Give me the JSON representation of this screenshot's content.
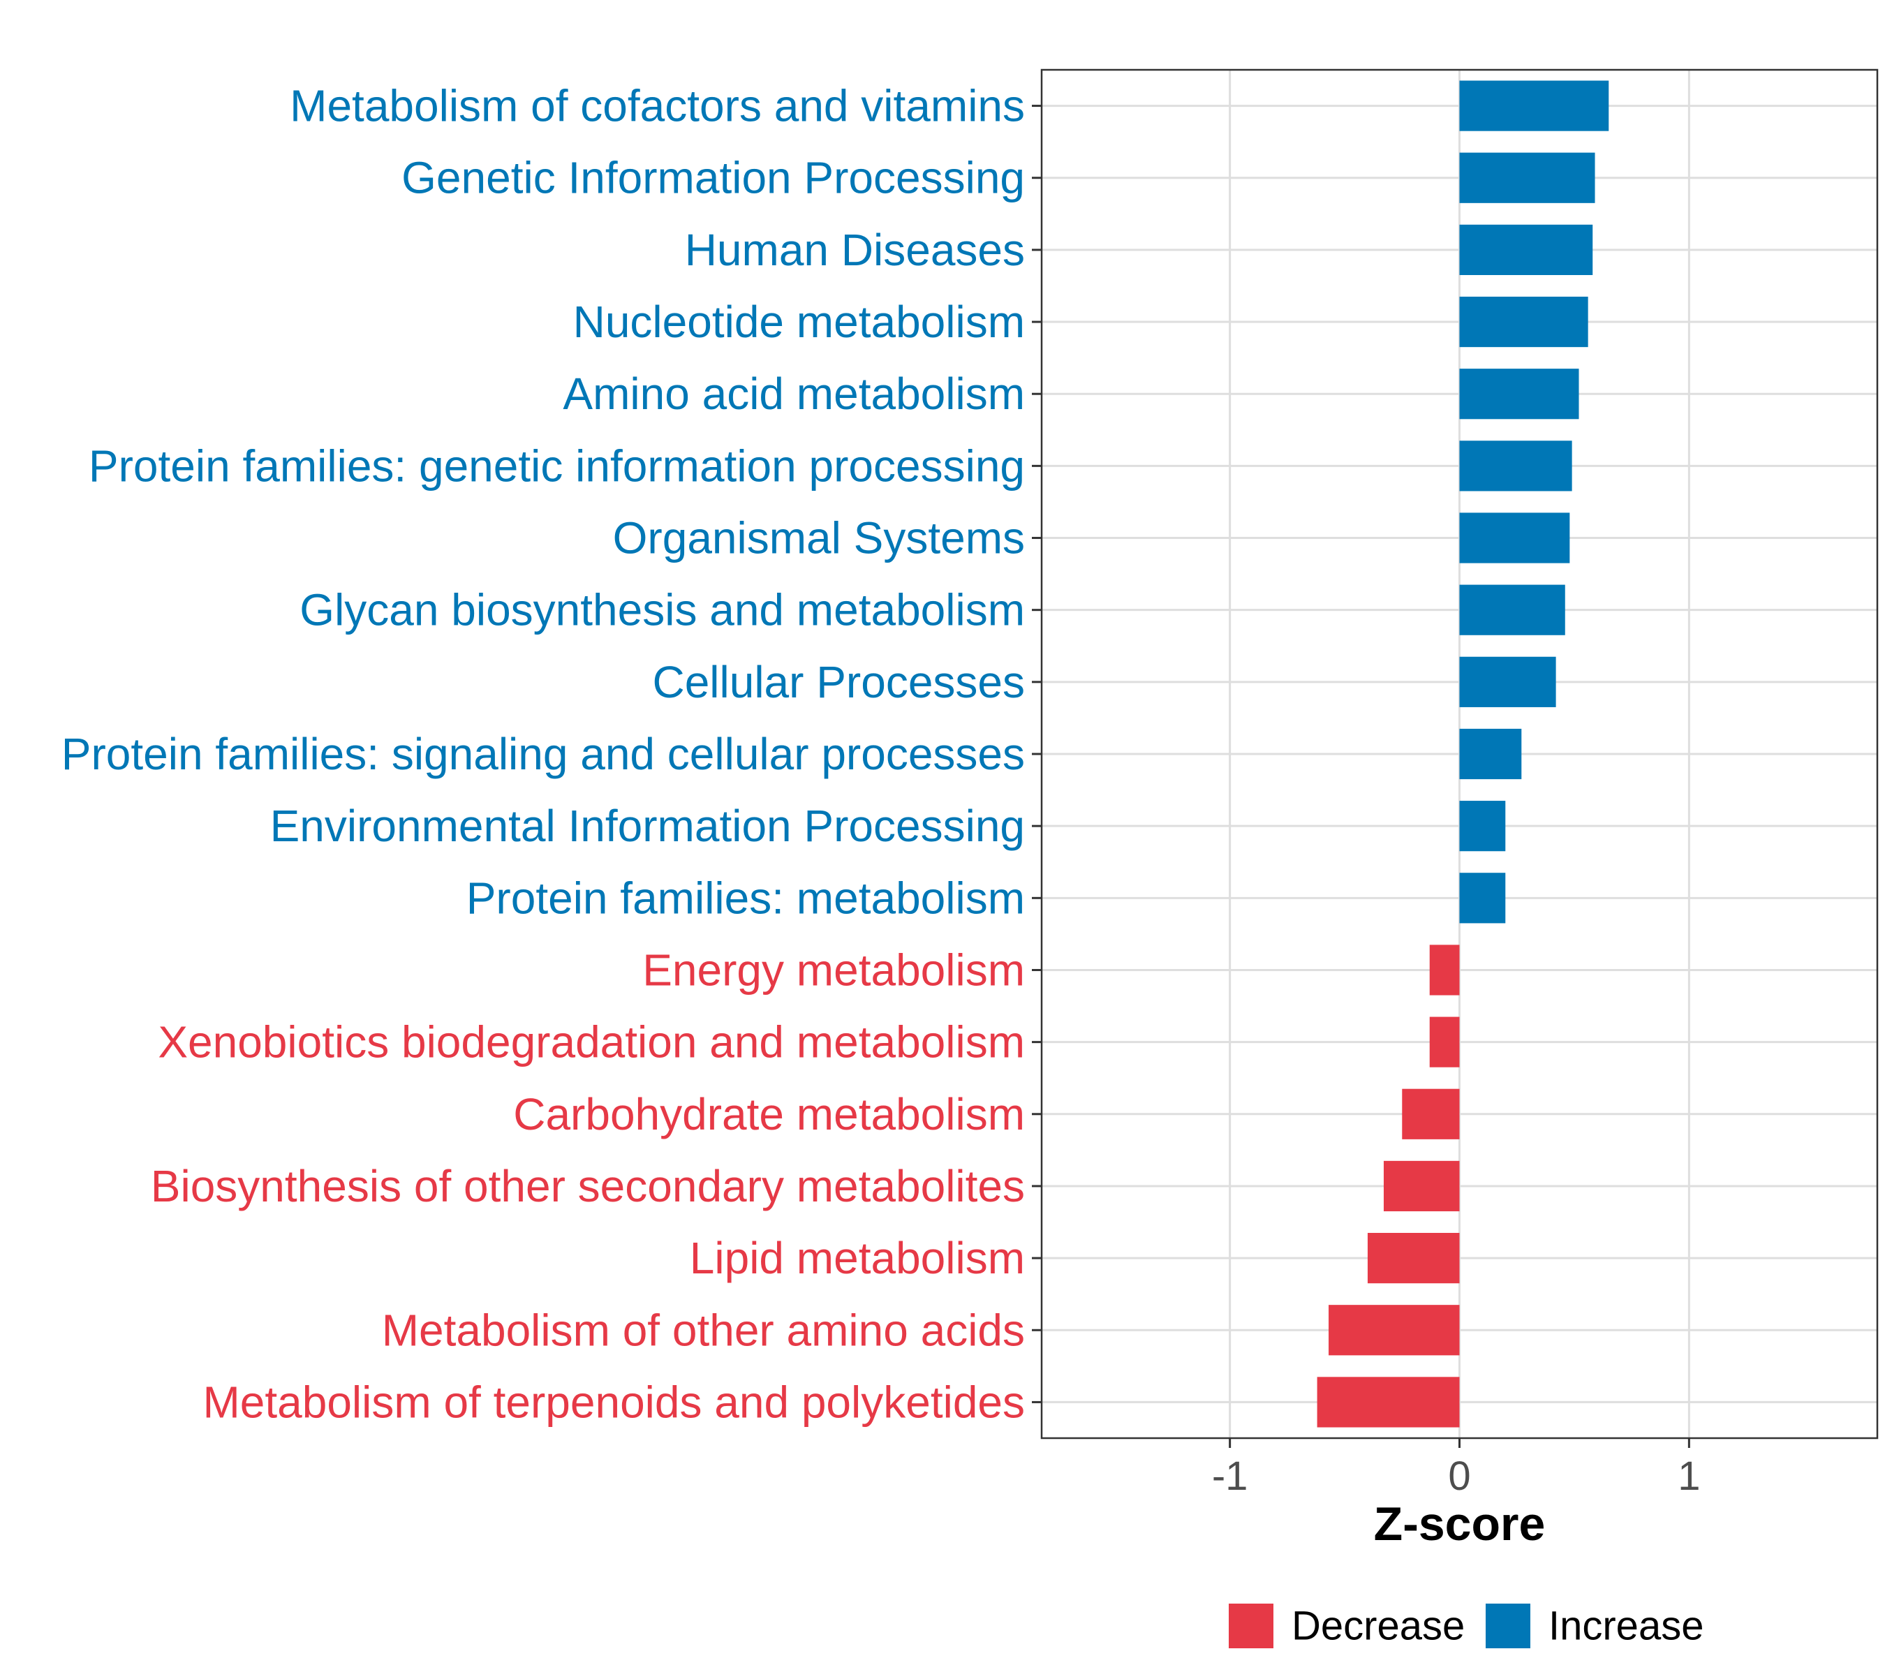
{
  "chart_data": {
    "type": "bar",
    "orientation": "horizontal",
    "xlabel": "Z-score",
    "ylabel": "",
    "xlim": [
      -1.82,
      1.82
    ],
    "xticks": [
      -1,
      0,
      1
    ],
    "xtick_labels": [
      "-1",
      "0",
      "1"
    ],
    "grid": true,
    "legend_position": "bottom",
    "colors": {
      "Decrease": "#E63946",
      "Increase": "#0077B6"
    },
    "legend": [
      {
        "name": "Decrease",
        "color": "#E63946"
      },
      {
        "name": "Increase",
        "color": "#0077B6"
      }
    ],
    "categories": [
      "Metabolism of cofactors and vitamins",
      "Genetic Information Processing",
      "Human Diseases",
      "Nucleotide metabolism",
      "Amino acid metabolism",
      "Protein families: genetic information processing",
      "Organismal Systems",
      "Glycan biosynthesis and metabolism",
      "Cellular Processes",
      "Protein families: signaling and cellular processes",
      "Environmental Information Processing",
      "Protein families: metabolism",
      "Energy metabolism",
      "Xenobiotics biodegradation and metabolism",
      "Carbohydrate metabolism",
      "Biosynthesis of other secondary metabolites",
      "Lipid metabolism",
      "Metabolism of other amino acids",
      "Metabolism of terpenoids and polyketides"
    ],
    "values": [
      0.65,
      0.59,
      0.58,
      0.56,
      0.52,
      0.49,
      0.48,
      0.46,
      0.42,
      0.27,
      0.2,
      0.2,
      -0.13,
      -0.13,
      -0.25,
      -0.33,
      -0.4,
      -0.57,
      -0.62
    ],
    "direction": [
      "Increase",
      "Increase",
      "Increase",
      "Increase",
      "Increase",
      "Increase",
      "Increase",
      "Increase",
      "Increase",
      "Increase",
      "Increase",
      "Increase",
      "Decrease",
      "Decrease",
      "Decrease",
      "Decrease",
      "Decrease",
      "Decrease",
      "Decrease"
    ]
  }
}
